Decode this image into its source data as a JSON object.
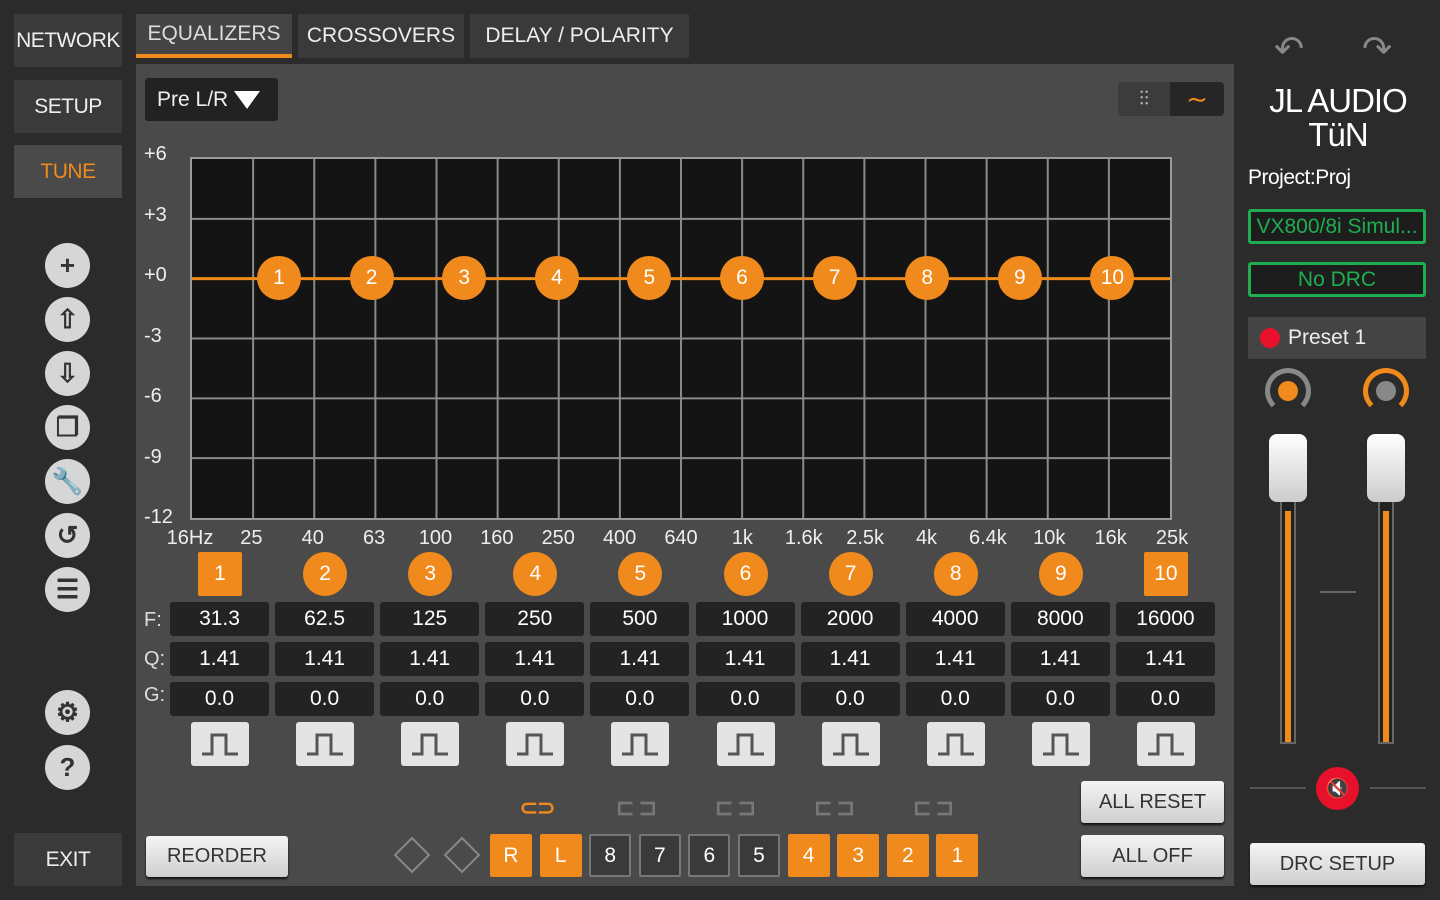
{
  "sidebar": {
    "network": "NETWORK",
    "setup": "SETUP",
    "tune": "TUNE",
    "exit": "EXIT",
    "icons": [
      "plus-icon",
      "upload-icon",
      "download-icon",
      "copy-icon",
      "wrench-icon",
      "reset-icon",
      "list-icon"
    ],
    "icon_glyphs": [
      "+",
      "⇧",
      "⇩",
      "❐",
      "🔧",
      "↺",
      "☰"
    ],
    "settings_glyph": "⚙",
    "help_glyph": "?"
  },
  "tabs": [
    "EQUALIZERS",
    "CROSSOVERS",
    "DELAY / POLARITY"
  ],
  "dropdown": {
    "value": "Pre L/R"
  },
  "graph": {
    "y_labels": [
      "+6",
      "+3",
      "+0",
      "-3",
      "-6",
      "-9",
      "-12"
    ],
    "x_labels": [
      "16Hz",
      "25",
      "40",
      "63",
      "100",
      "160",
      "250",
      "400",
      "640",
      "1k",
      "1.6k",
      "2.5k",
      "4k",
      "6.4k",
      "10k",
      "16k",
      "25k"
    ],
    "nodes": [
      "1",
      "2",
      "3",
      "4",
      "5",
      "6",
      "7",
      "8",
      "9",
      "10"
    ]
  },
  "bands": {
    "labels": [
      "1",
      "2",
      "3",
      "4",
      "5",
      "6",
      "7",
      "8",
      "9",
      "10"
    ],
    "row_labels": {
      "f": "F:",
      "q": "Q:",
      "g": "G:"
    },
    "freq": [
      "31.3",
      "62.5",
      "125",
      "250",
      "500",
      "1000",
      "2000",
      "4000",
      "8000",
      "16000"
    ],
    "q": [
      "1.41",
      "1.41",
      "1.41",
      "1.41",
      "1.41",
      "1.41",
      "1.41",
      "1.41",
      "1.41",
      "1.41"
    ],
    "gain": [
      "0.0",
      "0.0",
      "0.0",
      "0.0",
      "0.0",
      "0.0",
      "0.0",
      "0.0",
      "0.0",
      "0.0"
    ]
  },
  "bottom": {
    "reorder": "REORDER",
    "all_reset": "ALL RESET",
    "all_off": "ALL OFF",
    "channels": [
      {
        "label": "R",
        "on": true
      },
      {
        "label": "L",
        "on": true
      },
      {
        "label": "8",
        "on": false
      },
      {
        "label": "7",
        "on": false
      },
      {
        "label": "6",
        "on": false
      },
      {
        "label": "5",
        "on": false
      },
      {
        "label": "4",
        "on": true
      },
      {
        "label": "3",
        "on": true
      },
      {
        "label": "2",
        "on": true
      },
      {
        "label": "1",
        "on": true
      }
    ],
    "links_on": [
      true,
      false,
      false,
      false,
      false
    ]
  },
  "right": {
    "logo_line1": "JL AUDIO",
    "logo_line2": "TüN",
    "project": "Project:Proj",
    "device": "VX800/8i Simul...",
    "drc": "No DRC",
    "preset": "Preset 1",
    "drc_setup": "DRC SETUP",
    "level_left": 0.77,
    "level_right": 0.77
  },
  "colors": {
    "accent": "#f08a1c",
    "green": "#1fae4f",
    "red": "#e8102a"
  }
}
